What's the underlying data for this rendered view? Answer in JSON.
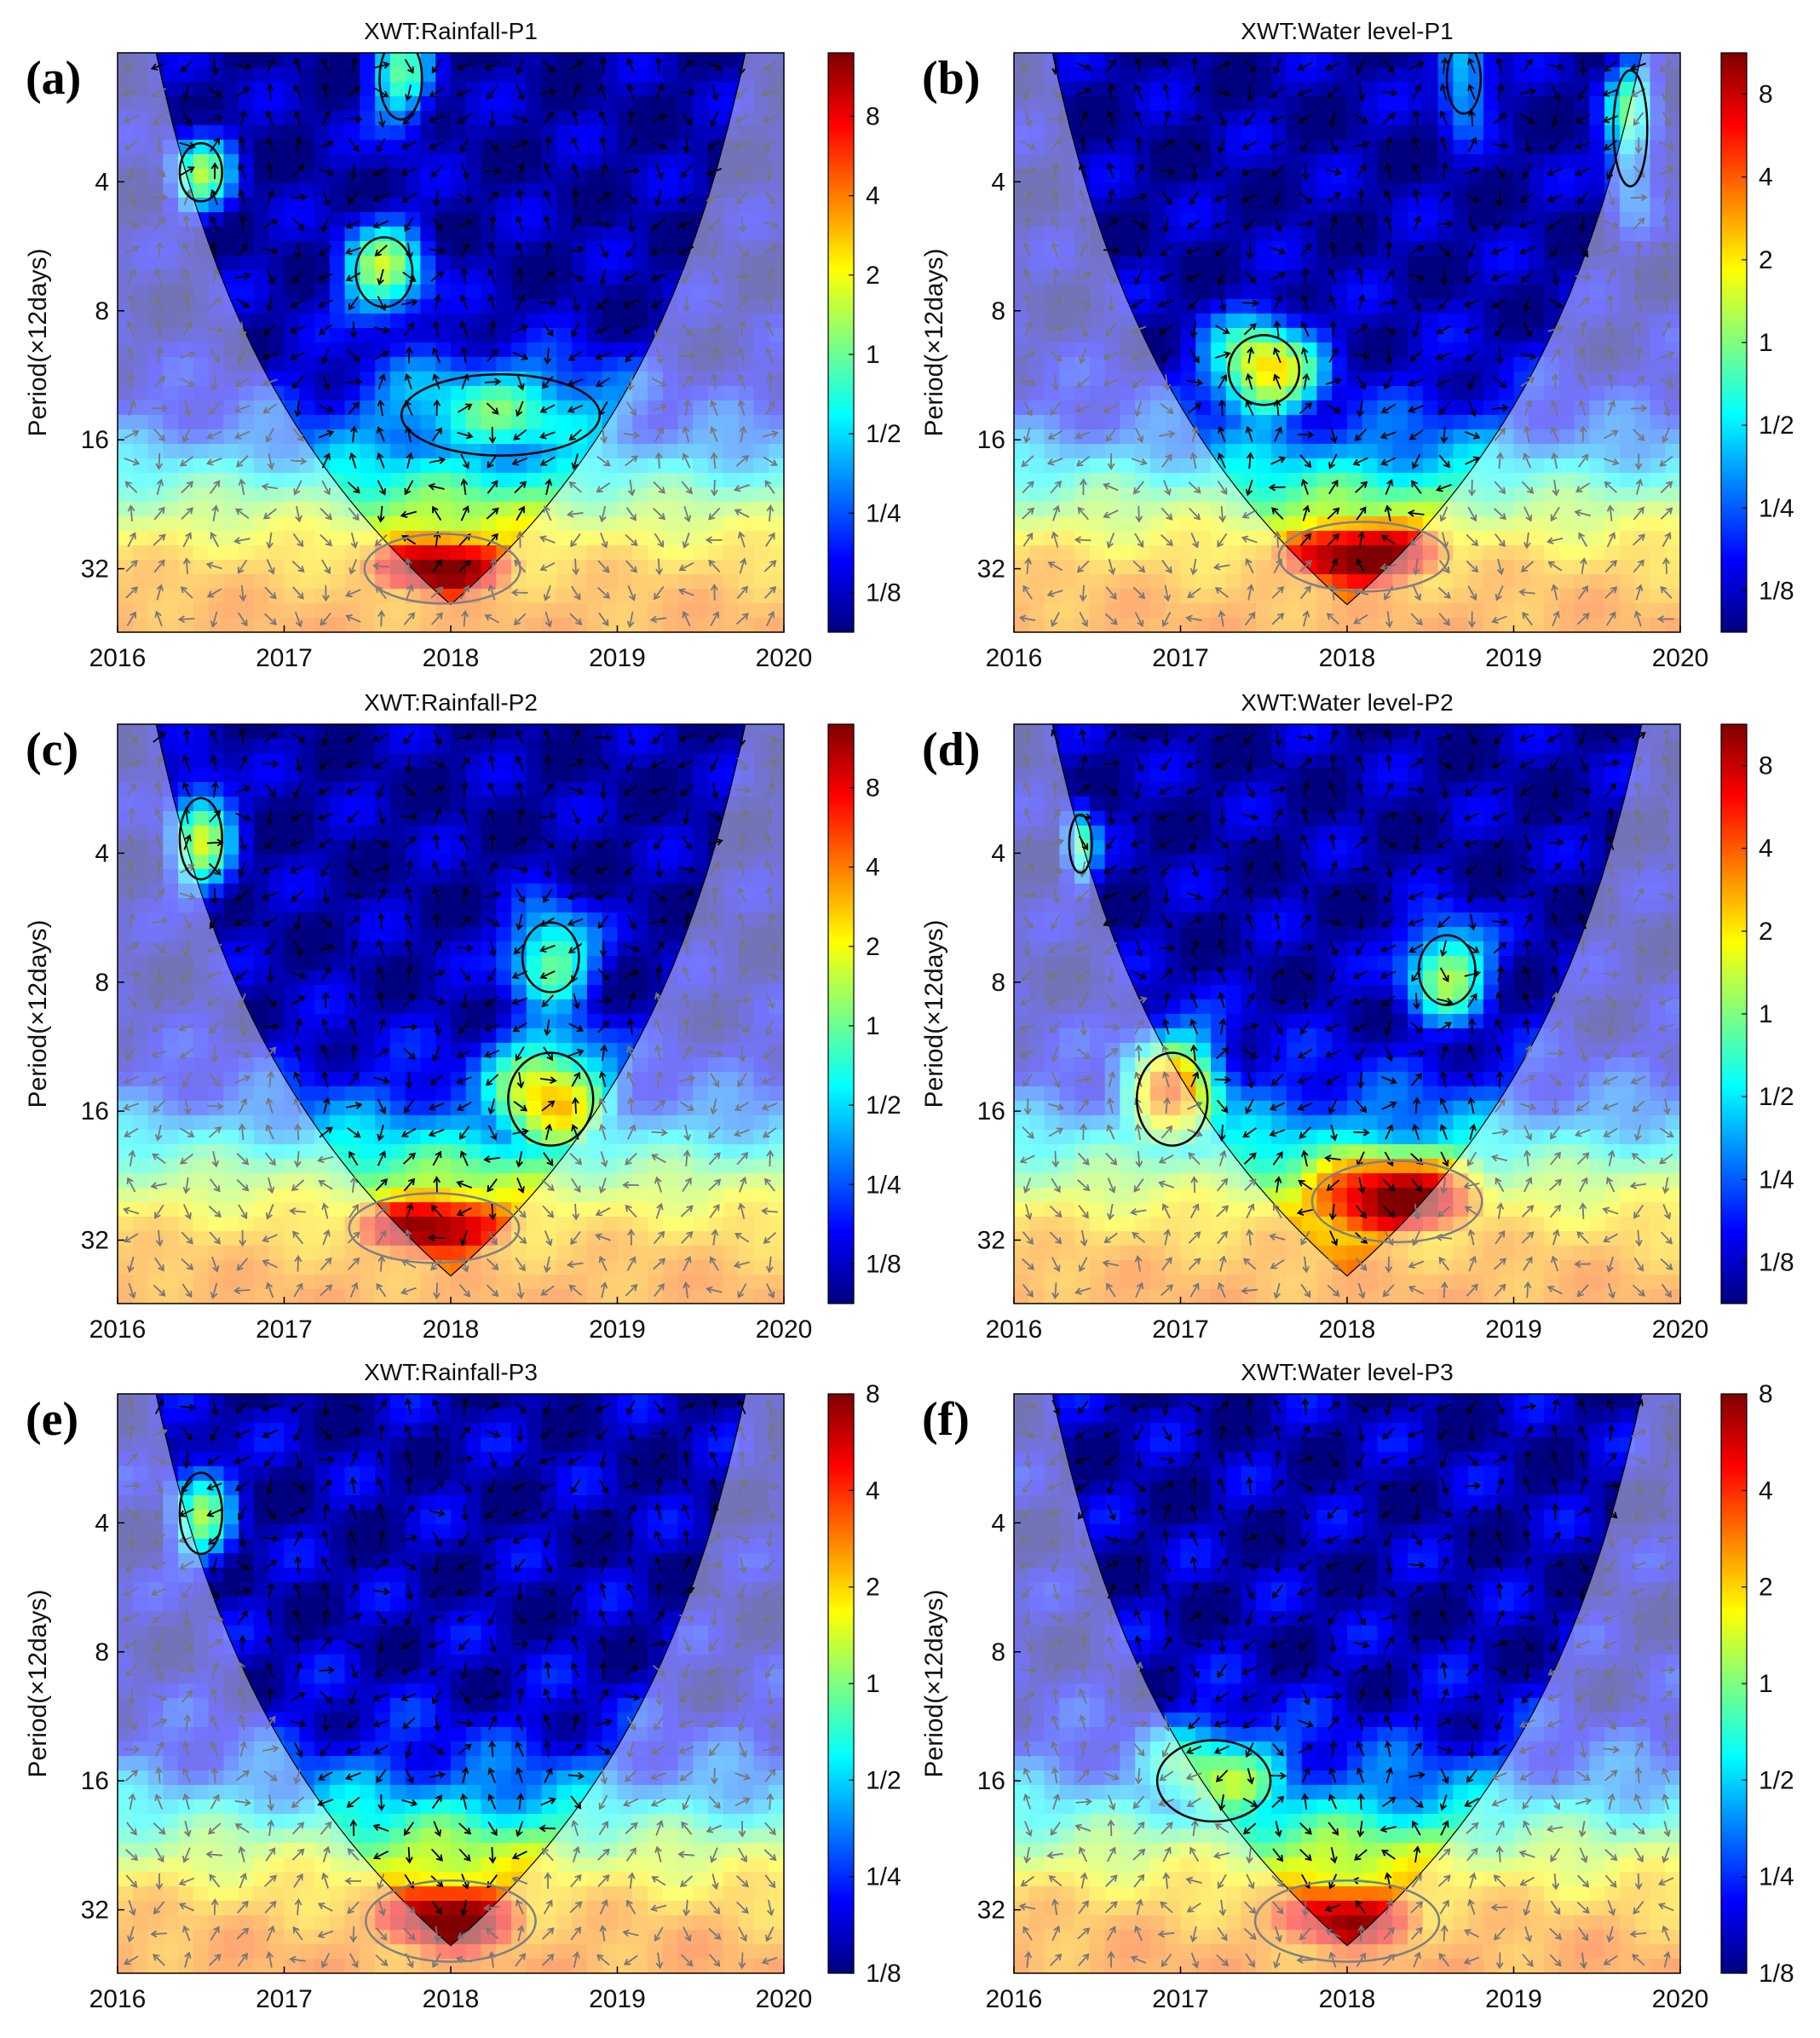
{
  "chart_data": [
    {
      "type": "heatmap",
      "panel_label": "(a)",
      "title": "XWT:Rainfall-P1",
      "ylabel": "Period(×12days)",
      "x_ticks": [
        "2016",
        "2017",
        "2018",
        "2019",
        "2020"
      ],
      "xlim": [
        2016,
        2020
      ],
      "y_ticks": [
        "4",
        "8",
        "16",
        "32"
      ],
      "ylim_period": [
        2,
        45
      ],
      "y_scale": "log2",
      "colorbar_ticks": [
        "1/8",
        "1/4",
        "1/2",
        "1",
        "2",
        "4",
        "8"
      ],
      "colorbar_range_log2": [
        -3.5,
        3.8
      ],
      "hotspots": [
        {
          "t": 2017.95,
          "p": 32,
          "log2_power": 4.0,
          "spread_t": 0.55,
          "spread_p": 0.3
        },
        {
          "t": 2016.5,
          "p": 3.8,
          "log2_power": 0,
          "spread_t": 0.15,
          "spread_p": 0.25
        },
        {
          "t": 2017.7,
          "p": 2.3,
          "log2_power": -0.5,
          "spread_t": 0.15,
          "spread_p": 0.35
        },
        {
          "t": 2017.6,
          "p": 6.5,
          "log2_power": 0.3,
          "spread_t": 0.2,
          "spread_p": 0.3
        },
        {
          "t": 2018.3,
          "p": 14,
          "log2_power": -0.3,
          "spread_t": 0.7,
          "spread_p": 0.35
        }
      ]
    },
    {
      "type": "heatmap",
      "panel_label": "(b)",
      "title": "XWT:Water level-P1",
      "ylabel": "Period(×12days)",
      "x_ticks": [
        "2016",
        "2017",
        "2018",
        "2019",
        "2020"
      ],
      "xlim": [
        2016,
        2020
      ],
      "y_ticks": [
        "4",
        "8",
        "16",
        "32"
      ],
      "ylim_period": [
        2,
        45
      ],
      "y_scale": "log2",
      "colorbar_ticks": [
        "1/8",
        "1/4",
        "1/2",
        "1",
        "2",
        "4",
        "8"
      ],
      "colorbar_range_log2": [
        -3.5,
        3.5
      ],
      "hotspots": [
        {
          "t": 2018.1,
          "p": 30,
          "log2_power": 3.8,
          "spread_t": 0.6,
          "spread_p": 0.3
        },
        {
          "t": 2017.5,
          "p": 11,
          "log2_power": 1.2,
          "spread_t": 0.25,
          "spread_p": 0.3
        },
        {
          "t": 2018.7,
          "p": 2.3,
          "log2_power": -0.8,
          "spread_t": 0.12,
          "spread_p": 0.3
        },
        {
          "t": 2019.7,
          "p": 3,
          "log2_power": -0.5,
          "spread_t": 0.12,
          "spread_p": 0.5
        }
      ]
    },
    {
      "type": "heatmap",
      "panel_label": "(c)",
      "title": "XWT:Rainfall-P2",
      "ylabel": "Period(×12days)",
      "x_ticks": [
        "2016",
        "2017",
        "2018",
        "2019",
        "2020"
      ],
      "xlim": [
        2016,
        2020
      ],
      "y_ticks": [
        "4",
        "8",
        "16",
        "32"
      ],
      "ylim_period": [
        2,
        45
      ],
      "y_scale": "log2",
      "colorbar_ticks": [
        "1/8",
        "1/4",
        "1/2",
        "1",
        "2",
        "4",
        "8"
      ],
      "colorbar_range_log2": [
        -3.5,
        3.8
      ],
      "hotspots": [
        {
          "t": 2017.9,
          "p": 30,
          "log2_power": 3.8,
          "spread_t": 0.6,
          "spread_p": 0.3
        },
        {
          "t": 2018.6,
          "p": 15,
          "log2_power": 1.5,
          "spread_t": 0.3,
          "spread_p": 0.4
        },
        {
          "t": 2018.6,
          "p": 7,
          "log2_power": 0.3,
          "spread_t": 0.2,
          "spread_p": 0.3
        },
        {
          "t": 2016.5,
          "p": 3.7,
          "log2_power": 0.3,
          "spread_t": 0.15,
          "spread_p": 0.35
        }
      ]
    },
    {
      "type": "heatmap",
      "panel_label": "(d)",
      "title": "XWT:Water level-P2",
      "ylabel": "Period(×12days)",
      "x_ticks": [
        "2016",
        "2017",
        "2018",
        "2019",
        "2020"
      ],
      "xlim": [
        2016,
        2020
      ],
      "y_ticks": [
        "4",
        "8",
        "16",
        "32"
      ],
      "ylim_period": [
        2,
        45
      ],
      "y_scale": "log2",
      "colorbar_ticks": [
        "1/8",
        "1/4",
        "1/2",
        "1",
        "2",
        "4",
        "8"
      ],
      "colorbar_range_log2": [
        -3.5,
        3.5
      ],
      "hotspots": [
        {
          "t": 2018.3,
          "p": 26,
          "log2_power": 3.6,
          "spread_t": 0.6,
          "spread_p": 0.35
        },
        {
          "t": 2016.95,
          "p": 15,
          "log2_power": 1.8,
          "spread_t": 0.25,
          "spread_p": 0.4
        },
        {
          "t": 2018.6,
          "p": 7.5,
          "log2_power": 0.3,
          "spread_t": 0.2,
          "spread_p": 0.3
        },
        {
          "t": 2016.4,
          "p": 3.8,
          "log2_power": -0.5,
          "spread_t": 0.08,
          "spread_p": 0.25
        }
      ]
    },
    {
      "type": "heatmap",
      "panel_label": "(e)",
      "title": "XWT:Rainfall-P3",
      "ylabel": "Period(×12days)",
      "x_ticks": [
        "2016",
        "2017",
        "2018",
        "2019",
        "2020"
      ],
      "xlim": [
        2016,
        2020
      ],
      "y_ticks": [
        "4",
        "8",
        "16",
        "32"
      ],
      "ylim_period": [
        2,
        45
      ],
      "y_scale": "log2",
      "colorbar_ticks": [
        "1/8",
        "1/4",
        "1/2",
        "1",
        "2",
        "4",
        "8"
      ],
      "colorbar_range_log2": [
        -3,
        3
      ],
      "hotspots": [
        {
          "t": 2018.0,
          "p": 34,
          "log2_power": 3.2,
          "spread_t": 0.6,
          "spread_p": 0.35
        },
        {
          "t": 2016.5,
          "p": 3.8,
          "log2_power": -0.3,
          "spread_t": 0.15,
          "spread_p": 0.35
        }
      ]
    },
    {
      "type": "heatmap",
      "panel_label": "(f)",
      "title": "XWT:Water level-P3",
      "ylabel": "Period(×12days)",
      "x_ticks": [
        "2016",
        "2017",
        "2018",
        "2019",
        "2020"
      ],
      "xlim": [
        2016,
        2020
      ],
      "y_ticks": [
        "4",
        "8",
        "16",
        "32"
      ],
      "ylim_period": [
        2,
        45
      ],
      "y_scale": "log2",
      "colorbar_ticks": [
        "1/8",
        "1/4",
        "1/2",
        "1",
        "2",
        "4",
        "8"
      ],
      "colorbar_range_log2": [
        -3,
        3
      ],
      "hotspots": [
        {
          "t": 2018.0,
          "p": 34,
          "log2_power": 2.8,
          "spread_t": 0.65,
          "spread_p": 0.35
        },
        {
          "t": 2017.2,
          "p": 16,
          "log2_power": 0.2,
          "spread_t": 0.4,
          "spread_p": 0.35
        }
      ]
    }
  ],
  "colors": {
    "colormap": [
      "#00007f",
      "#0000ff",
      "#007fff",
      "#00ffff",
      "#7fff7f",
      "#ffff00",
      "#ff7f00",
      "#ff0000",
      "#7f0000"
    ],
    "coi_overlay": "#ffffff",
    "contour_significant": "#000000",
    "contour_outside_coi": "#808080",
    "arrow_inside": "#000000",
    "arrow_outside": "#777777"
  }
}
